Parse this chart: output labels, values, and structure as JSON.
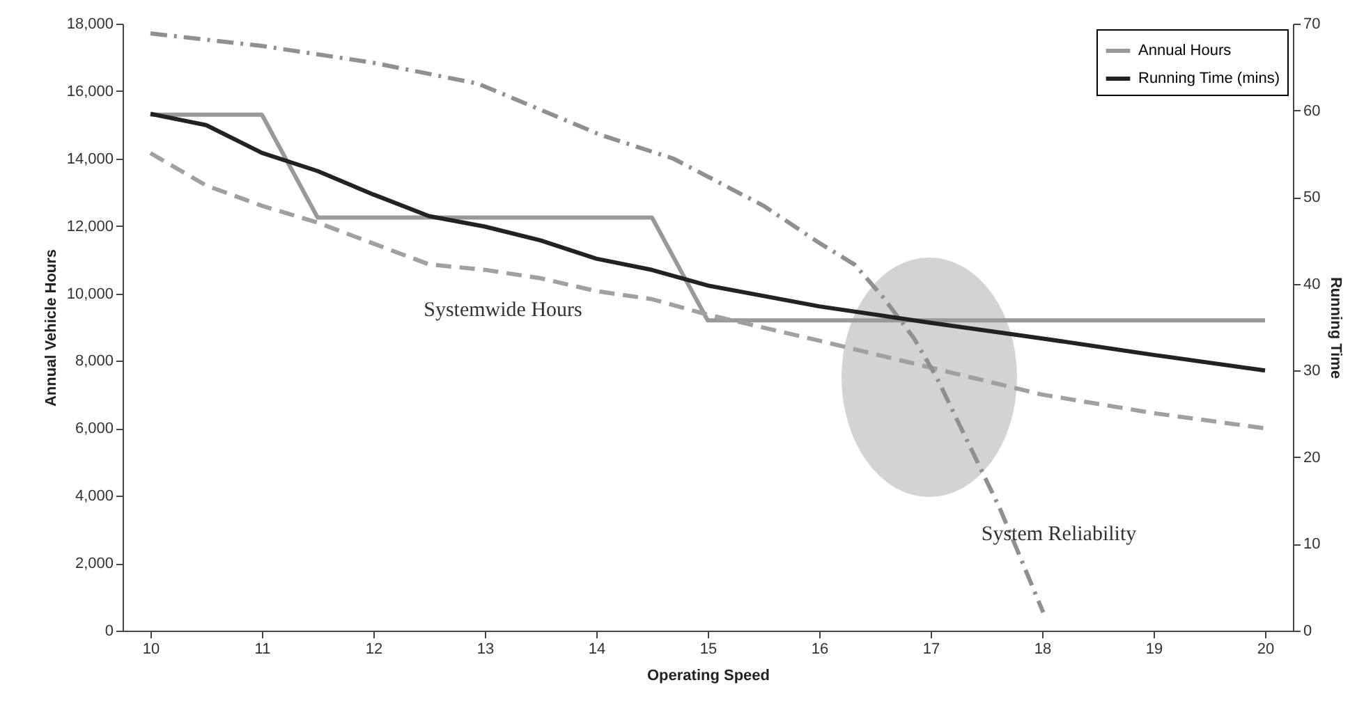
{
  "chart_data": {
    "type": "line",
    "xlabel": "Operating Speed",
    "ylabel": "Annual Vehicle Hours",
    "y2label": "Running Time",
    "xlim": [
      9.75,
      20.25
    ],
    "xticks": [
      10,
      11,
      12,
      13,
      14,
      15,
      16,
      17,
      18,
      19,
      20
    ],
    "ylim": [
      0,
      18000
    ],
    "yticks": [
      {
        "value": 0,
        "label": "0"
      },
      {
        "value": 2000,
        "label": "2,000"
      },
      {
        "value": 4000,
        "label": "4,000"
      },
      {
        "value": 6000,
        "label": "6,000"
      },
      {
        "value": 8000,
        "label": "8,000"
      },
      {
        "value": 10000,
        "label": "10,000"
      },
      {
        "value": 12000,
        "label": "12,000"
      },
      {
        "value": 14000,
        "label": "14,000"
      },
      {
        "value": 16000,
        "label": "16,000"
      },
      {
        "value": 18000,
        "label": "18,000"
      }
    ],
    "y2lim": [
      0,
      70
    ],
    "y2ticks": [
      0,
      10,
      20,
      30,
      40,
      50,
      60,
      70
    ],
    "grid": false,
    "legend": "top right",
    "marker": "none",
    "series": [
      {
        "name": "Annual Hours",
        "color": "#999999",
        "line_style": "solid",
        "x": [
          10,
          11,
          11.5,
          14.5,
          15,
          20
        ],
        "values": [
          15300,
          15300,
          12250,
          12250,
          9200,
          9200
        ]
      },
      {
        "name": "Running Time (mins)",
        "color": "#222222",
        "axis": "y2",
        "line_style": "solid",
        "x": [
          10,
          10.5,
          11,
          11.5,
          12,
          12.5,
          13,
          13.5,
          14,
          14.5,
          15,
          16,
          17,
          18,
          19,
          20
        ],
        "values": [
          59.6,
          58.3,
          55.1,
          53.0,
          50.3,
          47.8,
          46.6,
          45.0,
          42.9,
          41.6,
          39.8,
          37.4,
          35.5,
          33.7,
          31.8,
          30.0
        ]
      },
      {
        "color": "#a0a0a0",
        "line_style": "dashed",
        "x": [
          10,
          10.5,
          11,
          11.5,
          12,
          12.5,
          13,
          13.5,
          14,
          14.5,
          15,
          16,
          17,
          18,
          19,
          20
        ],
        "values": [
          14160,
          13200,
          12600,
          12100,
          11480,
          10860,
          10700,
          10450,
          10070,
          9830,
          9370,
          8600,
          7800,
          7000,
          6450,
          6000
        ]
      },
      {
        "color": "#909090",
        "line_style": "dashdot",
        "x": [
          10,
          11,
          12,
          12.94,
          14.04,
          14.69,
          15.5,
          16,
          16.32,
          16.57,
          16.85,
          17.06,
          17.24,
          17.62,
          18.01
        ],
        "values": [
          17710,
          17340,
          16840,
          16220,
          14700,
          14000,
          12600,
          11500,
          10850,
          9900,
          8670,
          7470,
          6230,
          3630,
          540
        ]
      }
    ],
    "annotations": [
      "Systemwide Hours",
      "System Reliability"
    ]
  }
}
